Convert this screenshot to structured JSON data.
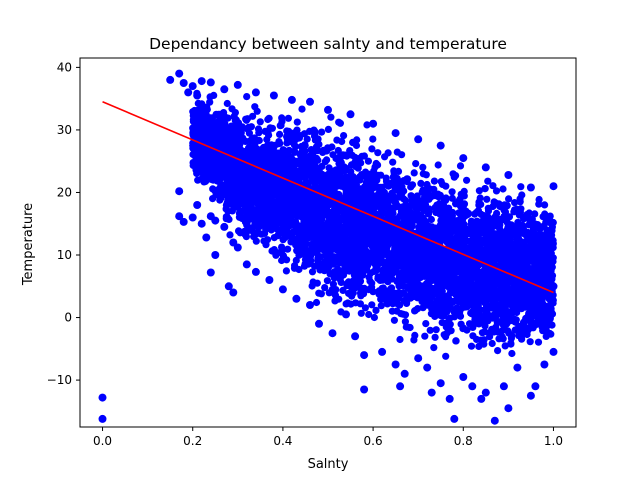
{
  "chart_data": {
    "type": "scatter",
    "title": "Dependancy between salnty and temperature",
    "xlabel": "Salnty",
    "ylabel": "Temperature",
    "xlim": [
      -0.05,
      1.05
    ],
    "ylim": [
      -17.5,
      41.5
    ],
    "xticks": [
      0.0,
      0.2,
      0.4,
      0.6,
      0.8,
      1.0
    ],
    "xtick_labels": [
      "0.0",
      "0.2",
      "0.4",
      "0.6",
      "0.8",
      "1.0"
    ],
    "yticks": [
      -10,
      0,
      10,
      20,
      30,
      40
    ],
    "ytick_labels": [
      "−10",
      "0",
      "10",
      "20",
      "30",
      "40"
    ],
    "grid": false,
    "legend": "none",
    "colors": {
      "points": "#0000ff",
      "fit_line": "#ff0000",
      "axes": "#000000"
    },
    "series": [
      {
        "kind": "scatter",
        "points": [
          [
            0.0,
            -12.8
          ],
          [
            0.0,
            -16.2
          ],
          [
            0.15,
            38.0
          ],
          [
            0.17,
            39.0
          ],
          [
            0.18,
            37.5
          ],
          [
            0.2,
            37.0
          ],
          [
            0.22,
            37.8
          ],
          [
            0.24,
            37.6
          ],
          [
            0.19,
            36.0
          ],
          [
            0.21,
            35.5
          ],
          [
            0.17,
            20.2
          ],
          [
            0.17,
            16.2
          ],
          [
            0.18,
            15.3
          ],
          [
            0.2,
            16.0
          ],
          [
            0.21,
            18.0
          ],
          [
            0.22,
            15.0
          ],
          [
            0.24,
            16.2
          ],
          [
            0.25,
            15.5
          ],
          [
            0.23,
            12.8
          ],
          [
            0.25,
            10.0
          ],
          [
            0.24,
            7.2
          ],
          [
            0.27,
            14.5
          ],
          [
            0.29,
            12.0
          ],
          [
            0.3,
            11.2
          ],
          [
            0.28,
            5.0
          ],
          [
            0.29,
            4.0
          ],
          [
            0.32,
            8.5
          ],
          [
            0.34,
            7.3
          ],
          [
            0.37,
            6.0
          ],
          [
            0.4,
            4.5
          ],
          [
            0.43,
            3.0
          ],
          [
            0.46,
            2.0
          ],
          [
            0.48,
            -1.0
          ],
          [
            0.51,
            -2.5
          ],
          [
            0.54,
            0.5
          ],
          [
            0.56,
            -3.0
          ],
          [
            0.58,
            -6.0
          ],
          [
            0.58,
            -11.5
          ],
          [
            0.62,
            -5.5
          ],
          [
            0.65,
            -7.5
          ],
          [
            0.67,
            -9.0
          ],
          [
            0.66,
            -11.0
          ],
          [
            0.7,
            -6.5
          ],
          [
            0.72,
            -8.0
          ],
          [
            0.73,
            -12.0
          ],
          [
            0.75,
            -10.5
          ],
          [
            0.77,
            -13.0
          ],
          [
            0.78,
            -16.2
          ],
          [
            0.8,
            -9.5
          ],
          [
            0.82,
            -11.0
          ],
          [
            0.84,
            -13.0
          ],
          [
            0.85,
            -12.0
          ],
          [
            0.87,
            -16.5
          ],
          [
            0.89,
            -11.0
          ],
          [
            0.9,
            -14.5
          ],
          [
            0.92,
            -8.0
          ],
          [
            0.95,
            -12.5
          ],
          [
            0.96,
            -11.0
          ],
          [
            0.98,
            -7.5
          ],
          [
            1.0,
            -5.5
          ],
          [
            1.0,
            5.0
          ],
          [
            1.0,
            21.0
          ],
          [
            0.95,
            20.8
          ],
          [
            0.9,
            22.8
          ],
          [
            0.85,
            24.0
          ],
          [
            0.8,
            25.5
          ],
          [
            0.75,
            27.5
          ],
          [
            0.7,
            28.5
          ],
          [
            0.65,
            29.5
          ],
          [
            0.6,
            31.0
          ],
          [
            0.55,
            32.5
          ],
          [
            0.5,
            33.2
          ],
          [
            0.46,
            34.5
          ],
          [
            0.42,
            34.8
          ],
          [
            0.38,
            35.5
          ],
          [
            0.34,
            36.0
          ],
          [
            0.3,
            37.2
          ],
          [
            0.27,
            36.5
          ]
        ]
      },
      {
        "kind": "fit_line",
        "points": [
          [
            0.0,
            34.5
          ],
          [
            1.0,
            4.0
          ]
        ]
      }
    ],
    "cloud_band": {
      "x": [
        0.2,
        0.3,
        0.4,
        0.5,
        0.6,
        0.7,
        0.8,
        0.9,
        1.0
      ],
      "y_low": [
        22.0,
        10.0,
        5.0,
        0.0,
        -3.0,
        -6.0,
        -8.0,
        -9.0,
        -7.0
      ],
      "y_high": [
        37.0,
        36.0,
        35.0,
        34.0,
        31.0,
        28.0,
        26.0,
        23.5,
        21.0
      ]
    }
  }
}
